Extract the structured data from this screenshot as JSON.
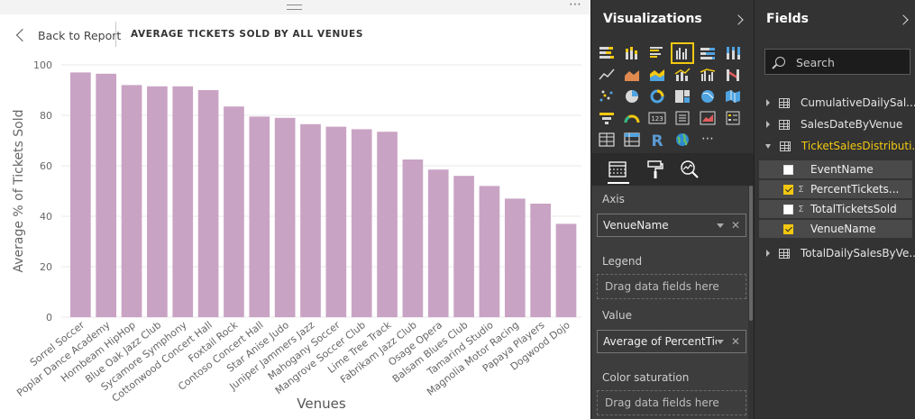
{
  "report": {
    "back_label": "Back to Report",
    "page_title": "AVERAGE TICKETS SOLD BY ALL VENUES",
    "more_glyph": "⋯"
  },
  "chart_data": {
    "type": "bar",
    "xlabel": "Venues",
    "ylabel": "Average % of Tickets Sold",
    "ylim": [
      0,
      100
    ],
    "yticks": [
      0,
      20,
      40,
      60,
      80,
      100
    ],
    "bar_color": "#c9a3c4",
    "grid": true,
    "categories": [
      "Sorrel Soccer",
      "Poplar Dance Academy",
      "Hornbeam HipHop",
      "Blue Oak Jazz Club",
      "Sycamore Symphony",
      "Cottonwood Concert Hall",
      "Foxtail Rock",
      "Contoso Concert Hall",
      "Star Anise Judo",
      "Juniper Jammers Jazz",
      "Mahogany Soccer",
      "Mangrove Soccer Club",
      "Lime Tree Track",
      "Fabrikam Jazz Club",
      "Osage Opera",
      "Balsam Blues Club",
      "Tamarind Studio",
      "Magnolia Motor Racing",
      "Papaya Players",
      "Dogwood Dojo"
    ],
    "values": [
      97,
      96.5,
      92,
      91.5,
      91.5,
      90,
      83.5,
      79.5,
      79,
      76.5,
      75.5,
      74.5,
      73.5,
      62.5,
      58.5,
      56,
      52,
      47,
      45,
      37
    ]
  },
  "visualizations": {
    "title": "Visualizations",
    "icons": [
      "stacked-bar-icon",
      "stacked-column-icon",
      "clustered-bar-icon",
      "clustered-column-icon",
      "100-stacked-bar-icon",
      "100-stacked-column-icon",
      "line-chart-icon",
      "area-chart-icon",
      "stacked-area-icon",
      "line-column-icon",
      "line-clustered-column-icon",
      "ribbon-chart-icon",
      "scatter-chart-icon",
      "pie-chart-icon",
      "donut-chart-icon",
      "treemap-icon",
      "map-icon",
      "filled-map-icon",
      "funnel-icon",
      "gauge-icon",
      "card-icon",
      "multi-row-card-icon",
      "kpi-icon",
      "slicer-icon",
      "table-icon",
      "matrix-icon",
      "r-visual-icon",
      "globe-icon",
      "more-visuals-icon"
    ],
    "selected_index": 3,
    "more_glyph": "⋯",
    "r_glyph": "R",
    "card_glyph": "123",
    "tools": [
      "fields-tool-icon",
      "format-paint-roller-icon",
      "analytics-magnifier-icon"
    ],
    "wells": {
      "axis_label": "Axis",
      "axis_value": "VenueName",
      "legend_label": "Legend",
      "legend_placeholder": "Drag data fields here",
      "value_label": "Value",
      "value_value": "Average of PercentTicke",
      "color_label": "Color saturation",
      "color_placeholder": "Drag data fields here"
    },
    "accent": "#f2c811"
  },
  "fields": {
    "title": "Fields",
    "search_placeholder": "Search",
    "tables": [
      {
        "name": "CumulativeDailySal...",
        "expanded": false
      },
      {
        "name": "SalesDateByVenue",
        "expanded": false
      },
      {
        "name": "TicketSalesDistributi...",
        "expanded": true
      },
      {
        "name": "TotalDailySalesByVe...",
        "expanded": false
      }
    ],
    "columns": [
      {
        "name": "EventName",
        "checked": false,
        "sigma": false
      },
      {
        "name": "PercentTickets...",
        "checked": true,
        "sigma": true
      },
      {
        "name": "TotalTicketsSold",
        "checked": false,
        "sigma": true
      },
      {
        "name": "VenueName",
        "checked": true,
        "sigma": false
      }
    ],
    "sigma_glyph": "Σ"
  }
}
